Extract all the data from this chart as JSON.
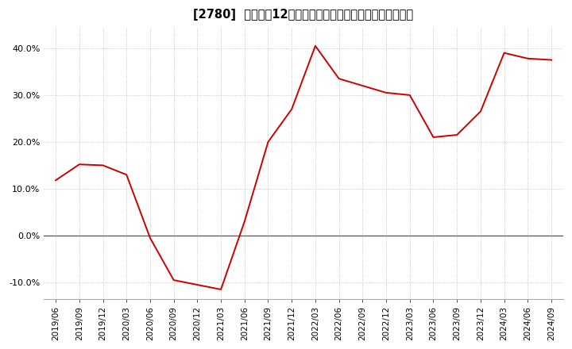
{
  "title": "[2780]  売上高の12か月移動合計の対前年同期増減率の推移",
  "line_color": "#cc0000",
  "background_color": "#ffffff",
  "plot_bg_color": "#ffffff",
  "grid_color": "#bbbbbb",
  "zero_line_color": "#555555",
  "ylim": [
    -0.135,
    0.445
  ],
  "yticks": [
    -0.1,
    0.0,
    0.1,
    0.2,
    0.3,
    0.4
  ],
  "dates": [
    "2019/06",
    "2019/09",
    "2019/12",
    "2020/03",
    "2020/06",
    "2020/09",
    "2020/12",
    "2021/03",
    "2021/06",
    "2021/09",
    "2021/12",
    "2022/03",
    "2022/06",
    "2022/09",
    "2022/12",
    "2023/03",
    "2023/06",
    "2023/09",
    "2023/12",
    "2024/03",
    "2024/06",
    "2024/09"
  ],
  "values": [
    0.118,
    0.152,
    0.15,
    0.13,
    -0.005,
    -0.095,
    -0.105,
    -0.115,
    0.03,
    0.2,
    0.27,
    0.405,
    0.335,
    0.32,
    0.305,
    0.3,
    0.21,
    0.215,
    0.265,
    0.39,
    0.378,
    0.375
  ],
  "title_fontsize": 10.5,
  "tick_fontsize": 7.5,
  "linewidth": 1.4
}
